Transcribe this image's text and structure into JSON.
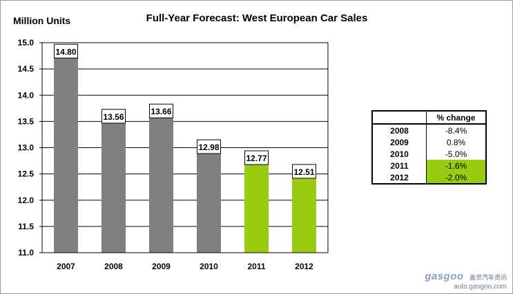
{
  "chart_data": {
    "type": "bar",
    "title": "Full-Year Forecast: West European Car Sales",
    "ylabel": "Million Units",
    "xlabel": "",
    "categories": [
      "2007",
      "2008",
      "2009",
      "2010",
      "2011",
      "2012"
    ],
    "values": [
      14.8,
      13.56,
      13.66,
      12.98,
      12.77,
      12.51
    ],
    "data_labels": [
      "14.80",
      "13.56",
      "13.66",
      "12.98",
      "12.77",
      "12.51"
    ],
    "bar_colors": [
      "#808080",
      "#808080",
      "#808080",
      "#808080",
      "#99cc11",
      "#99cc11"
    ],
    "ylim": [
      11.0,
      15.0
    ],
    "yticks": [
      "11.0",
      "11.5",
      "12.0",
      "12.5",
      "13.0",
      "13.5",
      "14.0",
      "14.5",
      "15.0"
    ],
    "grid": true,
    "legend": "none"
  },
  "change_table": {
    "header": "% change",
    "rows": [
      {
        "year": "2008",
        "pct": "-8.4%",
        "highlight": false
      },
      {
        "year": "2009",
        "pct": "0.8%",
        "highlight": false
      },
      {
        "year": "2010",
        "pct": "-5.0%",
        "highlight": false
      },
      {
        "year": "2011",
        "pct": "-1.6%",
        "highlight": true
      },
      {
        "year": "2012",
        "pct": "-2.0%",
        "highlight": true
      }
    ],
    "highlight_color": "#99cc11"
  },
  "watermark": {
    "brand": "gasgoo",
    "subtitle": "盖世汽车资讯",
    "url": "auto.gasgoo.com"
  }
}
